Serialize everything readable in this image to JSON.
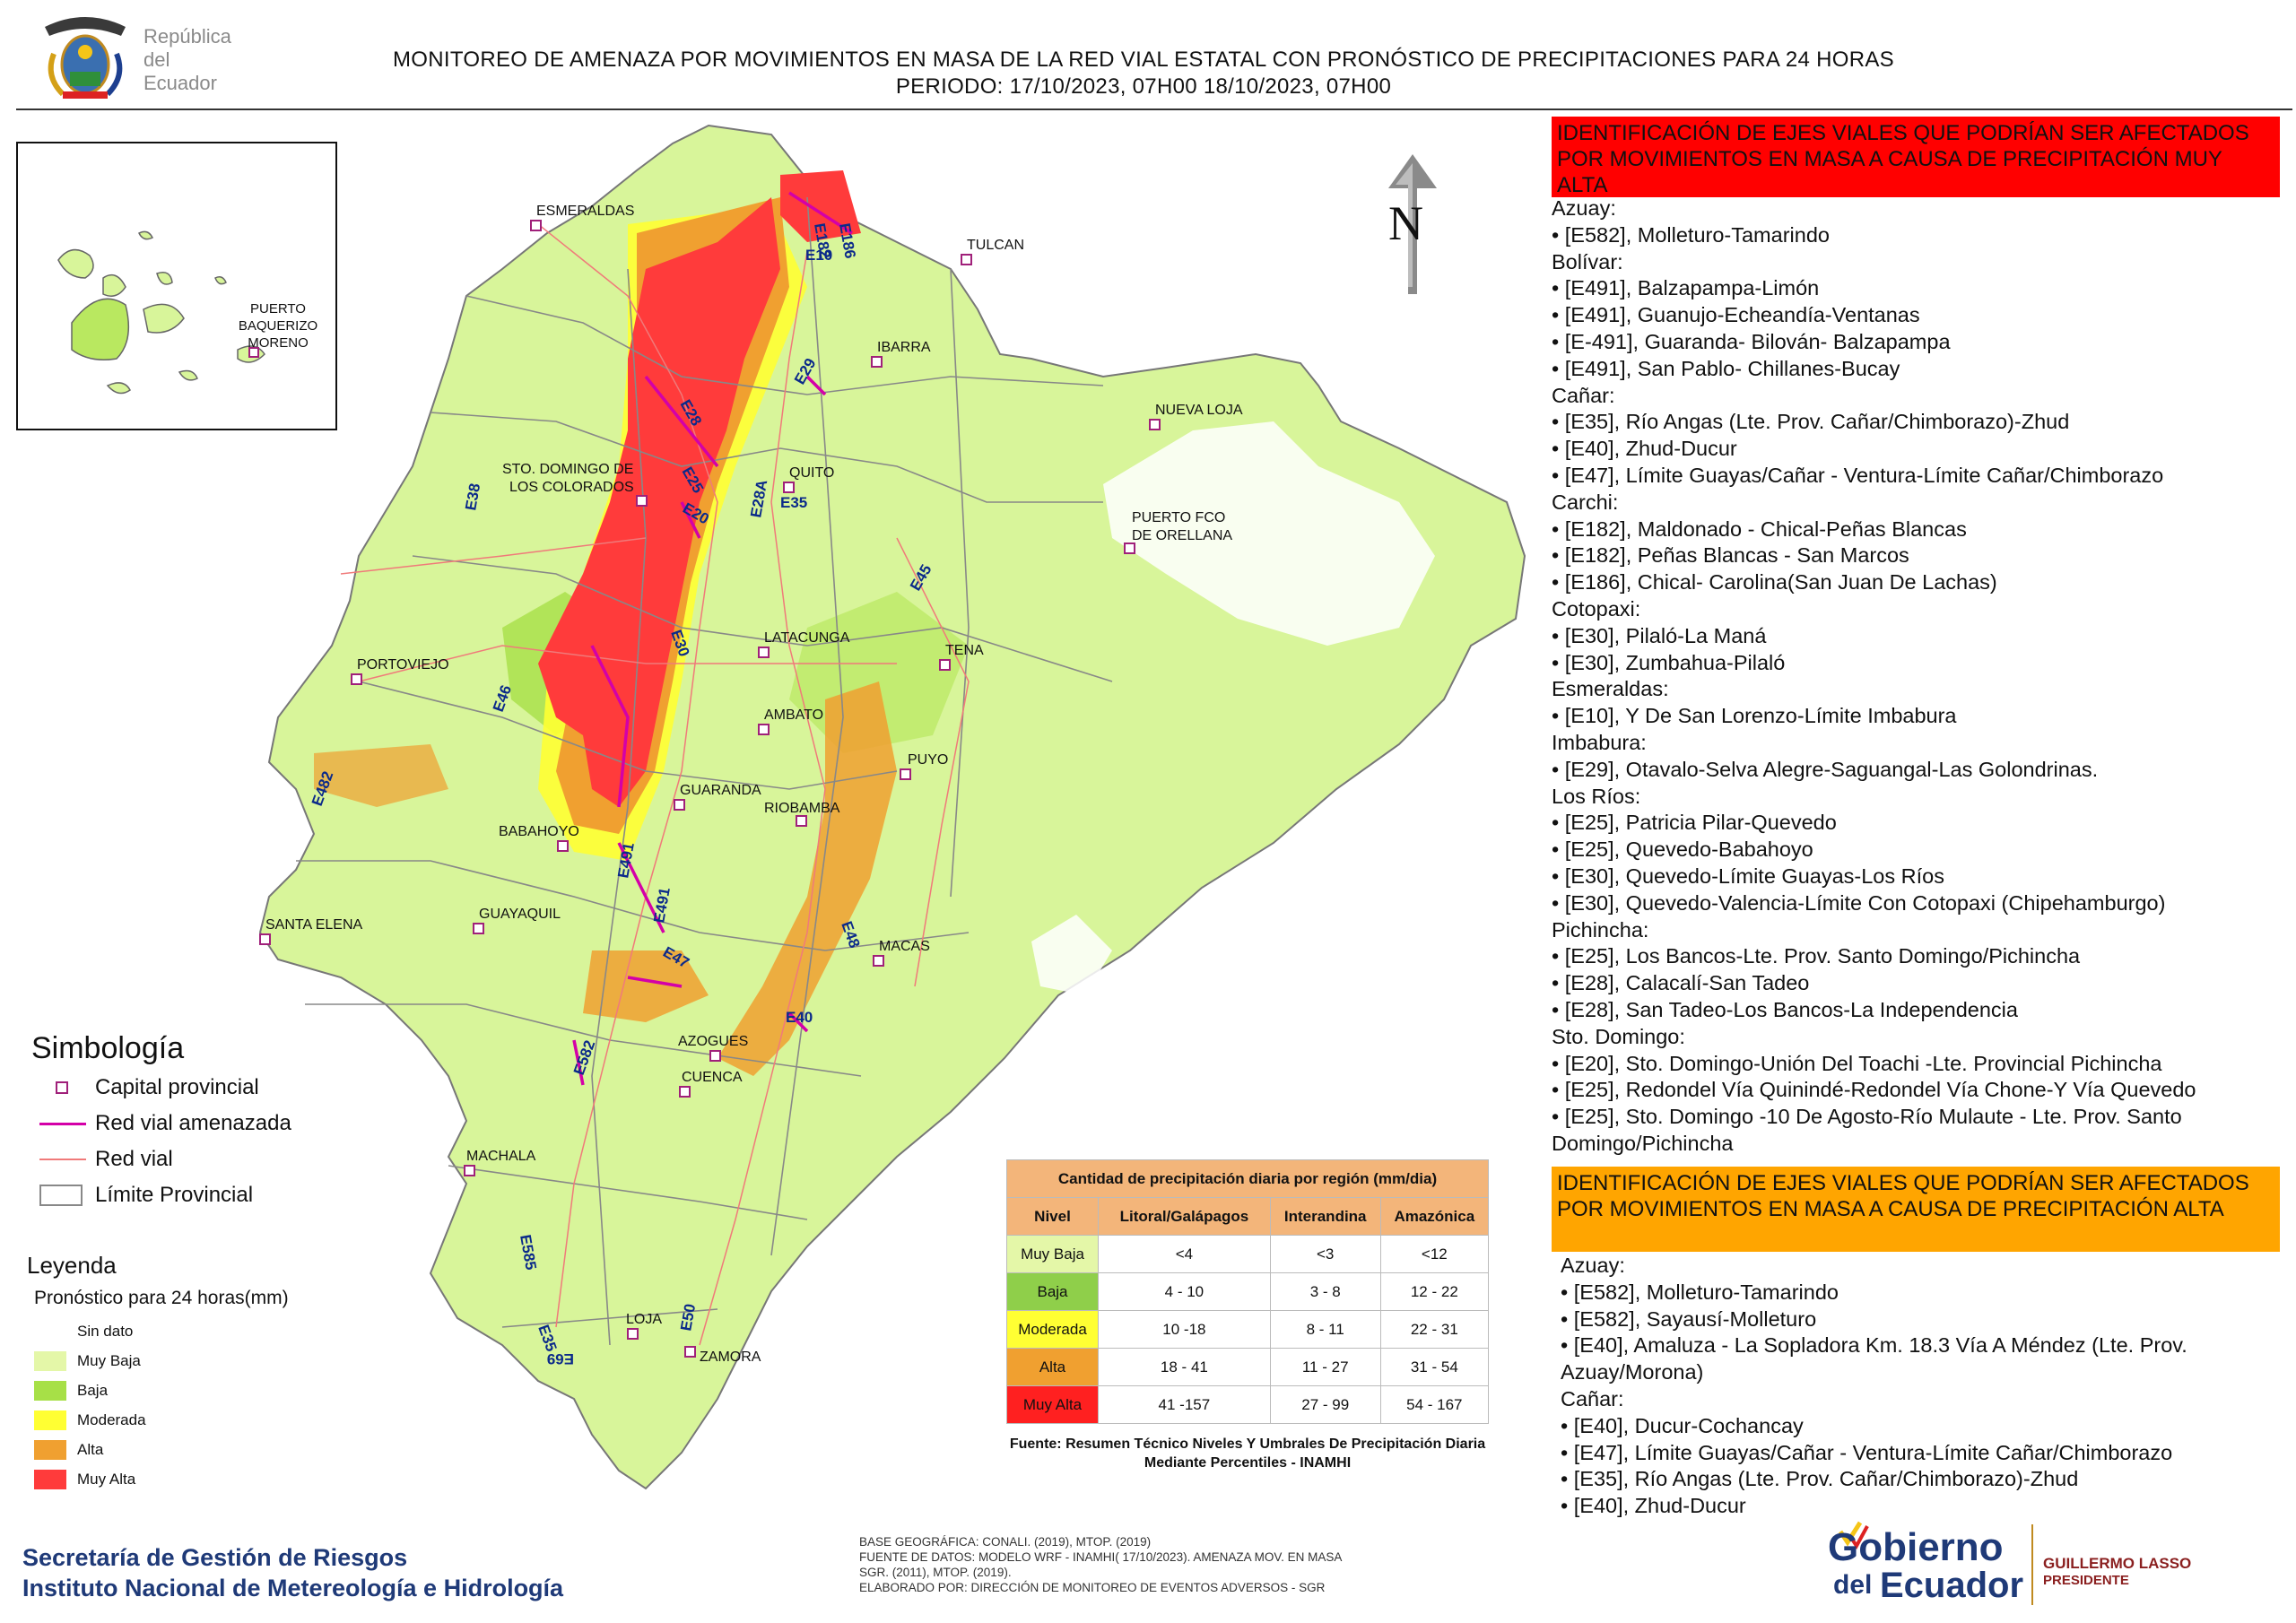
{
  "header": {
    "republic_line1": "República",
    "republic_line2": "del Ecuador",
    "title_line1": "MONITOREO DE AMENAZA POR MOVIMIENTOS EN MASA DE LA RED VIAL  ESTATAL  CON PRONÓSTICO  DE  PRECIPITACIONES PARA 24 HORAS",
    "title_line2": "PERIODO: 17/10/2023, 07H00 18/10/2023, 07H00"
  },
  "inset": {
    "city": "PUERTO BAQUERIZO MORENO"
  },
  "north_label": "N",
  "cities": [
    "ESMERALDAS",
    "TULCAN",
    "IBARRA",
    "NUEVA LOJA",
    "STO. DOMINGO DE",
    "LOS COLORADOS",
    "QUITO",
    "PUERTO FCO",
    "DE ORELLANA",
    "LATACUNGA",
    "TENA",
    "PORTOVIEJO",
    "AMBATO",
    "PUYO",
    "GUARANDA",
    "RIOBAMBA",
    "BABAHOYO",
    "SANTA ELENA",
    "GUAYAQUIL",
    "MACAS",
    "AZOGUES",
    "CUENCA",
    "MACHALA",
    "LOJA",
    "ZAMORA"
  ],
  "road_labels": [
    "E182",
    "E186",
    "E10",
    "E29",
    "E28",
    "E25",
    "E20",
    "E28A",
    "E35",
    "E38",
    "E30",
    "E45",
    "E46",
    "E482",
    "E491",
    "E491",
    "E47",
    "E48",
    "E40",
    "E582",
    "E585",
    "E35",
    "E69",
    "E50"
  ],
  "simbologia": {
    "title": "Simbología",
    "items": [
      "Capital provincial",
      "Red vial amenazada",
      "Red vial",
      "Límite Provincial"
    ],
    "colors": {
      "capital": "#a0207a",
      "threatened": "#d400a8",
      "road": "#f07a7a",
      "limit": "#888888"
    }
  },
  "leyenda": {
    "title": "Leyenda",
    "subtitle": "Pronóstico para 24 horas(mm)",
    "items": [
      {
        "label": "Sin dato",
        "color": "#ffffff"
      },
      {
        "label": "Muy Baja",
        "color": "#e4f7a8"
      },
      {
        "label": "Baja",
        "color": "#a7e047"
      },
      {
        "label": "Moderada",
        "color": "#ffff33"
      },
      {
        "label": "Alta",
        "color": "#f0a030"
      },
      {
        "label": "Muy Alta",
        "color": "#ff3b3b"
      }
    ]
  },
  "organization": {
    "line1": "Secretaría de Gestión de Riesgos",
    "line2": "Instituto Nacional de Metereología e Hidrología"
  },
  "precip_table": {
    "title": "Cantidad de precipitación diaria por región (mm/dia)",
    "headers": [
      "Nivel",
      "Litoral/Galápagos",
      "Interandina",
      "Amazónica"
    ],
    "rows": [
      {
        "level": "Muy Baja",
        "color": "#e4f7a8",
        "litoral": "<4",
        "interandina": "<3",
        "amazonica": "<12"
      },
      {
        "level": "Baja",
        "color": "#8fcf4a",
        "litoral": "4 - 10",
        "interandina": "3 - 8",
        "amazonica": "12 - 22"
      },
      {
        "level": "Moderada",
        "color": "#ffff33",
        "litoral": "10 -18",
        "interandina": "8 - 11",
        "amazonica": "22 - 31"
      },
      {
        "level": "Alta",
        "color": "#f0a030",
        "litoral": "18 - 41",
        "interandina": "11 - 27",
        "amazonica": "31 - 54"
      },
      {
        "level": "Muy Alta",
        "color": "#ff2020",
        "litoral": "41 -157",
        "interandina": "27 - 99",
        "amazonica": "54 - 167"
      }
    ],
    "source": "Fuente: Resumen Técnico Niveles Y Umbrales De Precipitación Diaria Mediante Percentiles - INAMHI"
  },
  "base_info": {
    "line1": "BASE GEOGRÁFICA: CONALI. (2019), MTOP. (2019)",
    "line2": "FUENTE DE DATOS: MODELO WRF - INAMHI( 17/10/2023).  AMENAZA MOV. EN MASA",
    "line3": "SGR. (2011), MTOP. (2019).",
    "line4": "ELABORADO POR: DIRECCIÓN DE MONITOREO DE EVENTOS ADVERSOS - SGR"
  },
  "very_high": {
    "banner": "IDENTIFICACIÓN DE EJES VIALES QUE PODRÍAN SER AFECTADOS POR MOVIMIENTOS EN MASA A CAUSA DE PRECIPITACIÓN MUY ALTA",
    "lines": [
      "Azuay:",
      "• [E582], Molleturo-Tamarindo",
      "Bolívar:",
      "• [E491], Balzapampa-Limón",
      "• [E491], Guanujo-Echeandía-Ventanas",
      "• [E-491], Guaranda- Bilován- Balzapampa",
      "• [E491], San Pablo- Chillanes-Bucay",
      "Cañar:",
      "• [E35], Río Angas (Lte. Prov. Cañar/Chimborazo)-Zhud",
      "• [E40], Zhud-Ducur",
      "• [E47], Límite Guayas/Cañar - Ventura-Límite Cañar/Chimborazo",
      "Carchi:",
      "• [E182], Maldonado - Chical-Peñas Blancas",
      "• [E182], Peñas Blancas - San Marcos",
      "• [E186], Chical- Carolina(San Juan De Lachas)",
      "Cotopaxi:",
      "• [E30], Pilaló-La Maná",
      "• [E30], Zumbahua-Pilaló",
      "Esmeraldas:",
      "• [E10], Y De San Lorenzo-Límite Imbabura",
      "Imbabura:",
      "• [E29], Otavalo-Selva Alegre-Saguangal-Las Golondrinas.",
      "Los Ríos:",
      "• [E25], Patricia Pilar-Quevedo",
      "• [E25], Quevedo-Babahoyo",
      "• [E30], Quevedo-Límite Guayas-Los Ríos",
      "• [E30], Quevedo-Valencia-Límite Con Cotopaxi (Chipehamburgo)",
      "Pichincha:",
      "• [E25], Los Bancos-Lte. Prov. Santo Domingo/Pichincha",
      "• [E28], Calacalí-San Tadeo",
      "• [E28], San Tadeo-Los Bancos-La Independencia",
      "Sto. Domingo:",
      "• [E20], Sto. Domingo-Unión Del Toachi -Lte. Provincial Pichincha",
      "• [E25], Redondel Vía Quinindé-Redondel Vía Chone-Y Vía Quevedo",
      "• [E25], Sto. Domingo -10 De Agosto-Río Mulaute - Lte. Prov. Santo Domingo/Pichincha"
    ]
  },
  "high": {
    "banner": "IDENTIFICACIÓN DE EJES VIALES QUE PODRÍAN SER AFECTADOS POR MOVIMIENTOS EN MASA A CAUSA DE PRECIPITACIÓN  ALTA",
    "lines": [
      "Azuay:",
      "• [E582], Molleturo-Tamarindo",
      "• [E582], Sayausí-Molleturo",
      "• [E40], Amaluza - La Sopladora Km. 18.3 Vía A Méndez (Lte. Prov. Azuay/Morona)",
      "Cañar:",
      "• [E40], Ducur-Cochancay",
      "• [E47], Límite Guayas/Cañar - Ventura-Límite Cañar/Chimborazo",
      "• [E35], Río Angas (Lte. Prov. Cañar/Chimborazo)-Zhud",
      "• [E40], Zhud-Ducur"
    ]
  },
  "gobierno": {
    "word1": "Gobierno",
    "word2": "del",
    "word3": "Ecuador",
    "president_name": "GUILLERMO LASSO",
    "president_title": "PRESIDENTE"
  }
}
